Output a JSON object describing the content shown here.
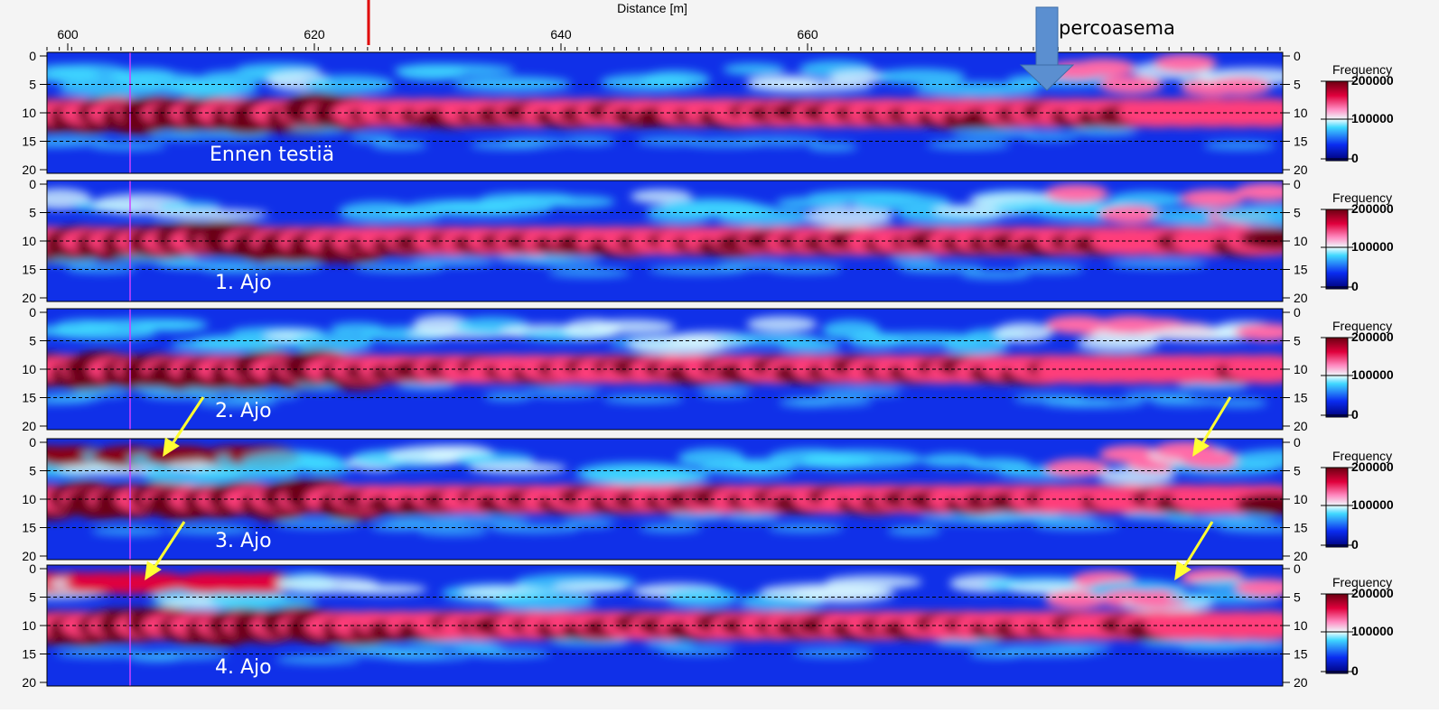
{
  "header": {
    "title": "Distance [m]",
    "annotation": "percoasema"
  },
  "x_ticks": [
    600,
    620,
    640,
    660
  ],
  "y_ticks": [
    0,
    5,
    10,
    15,
    20
  ],
  "colorbar": {
    "title": "Frequency",
    "labels": [
      "200000",
      "100000",
      "0"
    ]
  },
  "panels": [
    {
      "label": "Ennen testiä"
    },
    {
      "label": "1. Ajo"
    },
    {
      "label": "2. Ajo"
    },
    {
      "label": "3. Ajo"
    },
    {
      "label": "4. Ajo"
    }
  ]
}
